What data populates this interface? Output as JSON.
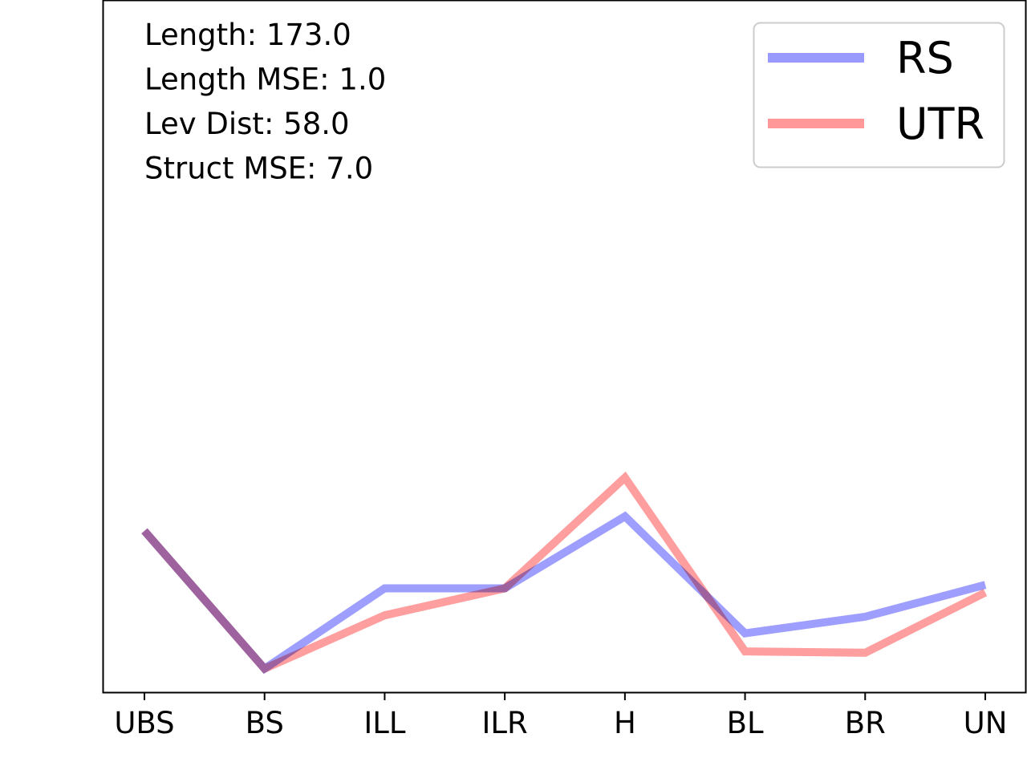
{
  "chart_data": {
    "type": "line",
    "categories": [
      "UBS",
      "BS",
      "ILL",
      "ILR",
      "H",
      "BL",
      "BR",
      "UN"
    ],
    "series": [
      {
        "name": "RS",
        "color": "#9999ff",
        "values": [
          0.233,
          0.034,
          0.15,
          0.15,
          0.254,
          0.085,
          0.109,
          0.155
        ]
      },
      {
        "name": "UTR",
        "color": "#ff9999",
        "values": [
          0.233,
          0.034,
          0.111,
          0.15,
          0.31,
          0.059,
          0.057,
          0.144
        ]
      }
    ],
    "ylim": [
      0,
      1
    ],
    "grid": false,
    "legend": "top-right",
    "annotations": [
      "Length: 173.0",
      "Length MSE: 1.0",
      "Lev Dist: 58.0",
      "Struct MSE: 7.0"
    ]
  }
}
